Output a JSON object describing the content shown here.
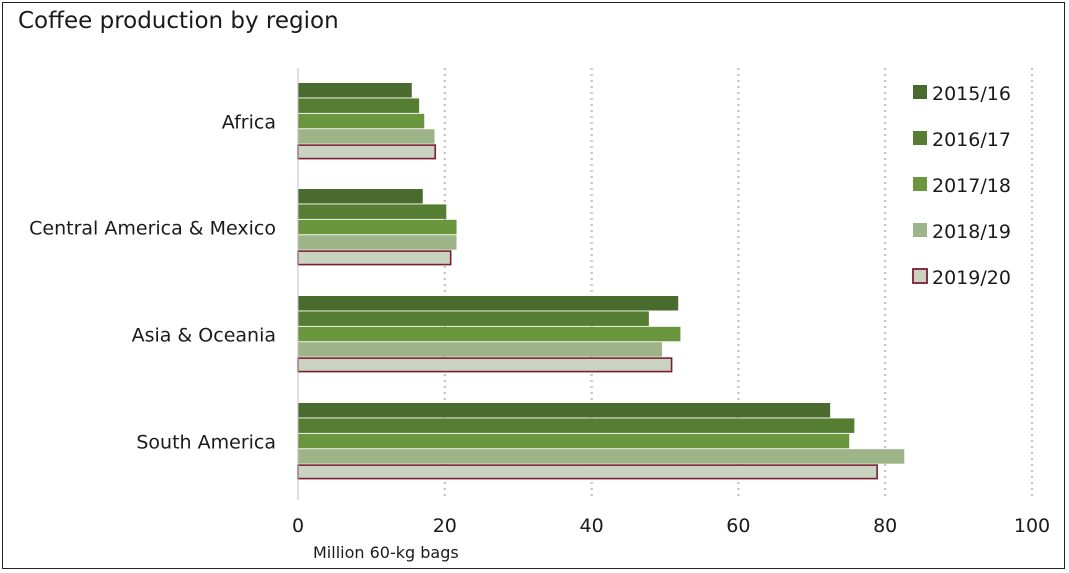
{
  "chart_data": {
    "type": "bar",
    "orientation": "horizontal",
    "title": "Coffee production by region",
    "xlabel": "Million 60-kg bags",
    "ylabel": "",
    "xlim": [
      0,
      100
    ],
    "xticks": [
      0,
      20,
      40,
      60,
      80,
      100
    ],
    "grid": "vertical dotted",
    "legend_position": "right",
    "categories": [
      "Africa",
      "Central America & Mexico",
      "Asia & Oceania",
      "South America"
    ],
    "series": [
      {
        "name": "2015/16",
        "color": "#4a6b2e",
        "values": [
          15.5,
          17.0,
          51.8,
          72.5
        ]
      },
      {
        "name": "2016/17",
        "color": "#557e33",
        "values": [
          16.5,
          20.2,
          47.8,
          75.8
        ]
      },
      {
        "name": "2017/18",
        "color": "#6a963e",
        "values": [
          17.2,
          21.6,
          52.1,
          75.1
        ]
      },
      {
        "name": "2018/19",
        "color": "#9db488",
        "values": [
          18.6,
          21.6,
          49.6,
          82.6
        ]
      },
      {
        "name": "2019/20",
        "color": "#c9d3c0",
        "outline": "#7a1e34",
        "values": [
          18.7,
          20.8,
          50.9,
          78.9
        ]
      }
    ]
  }
}
